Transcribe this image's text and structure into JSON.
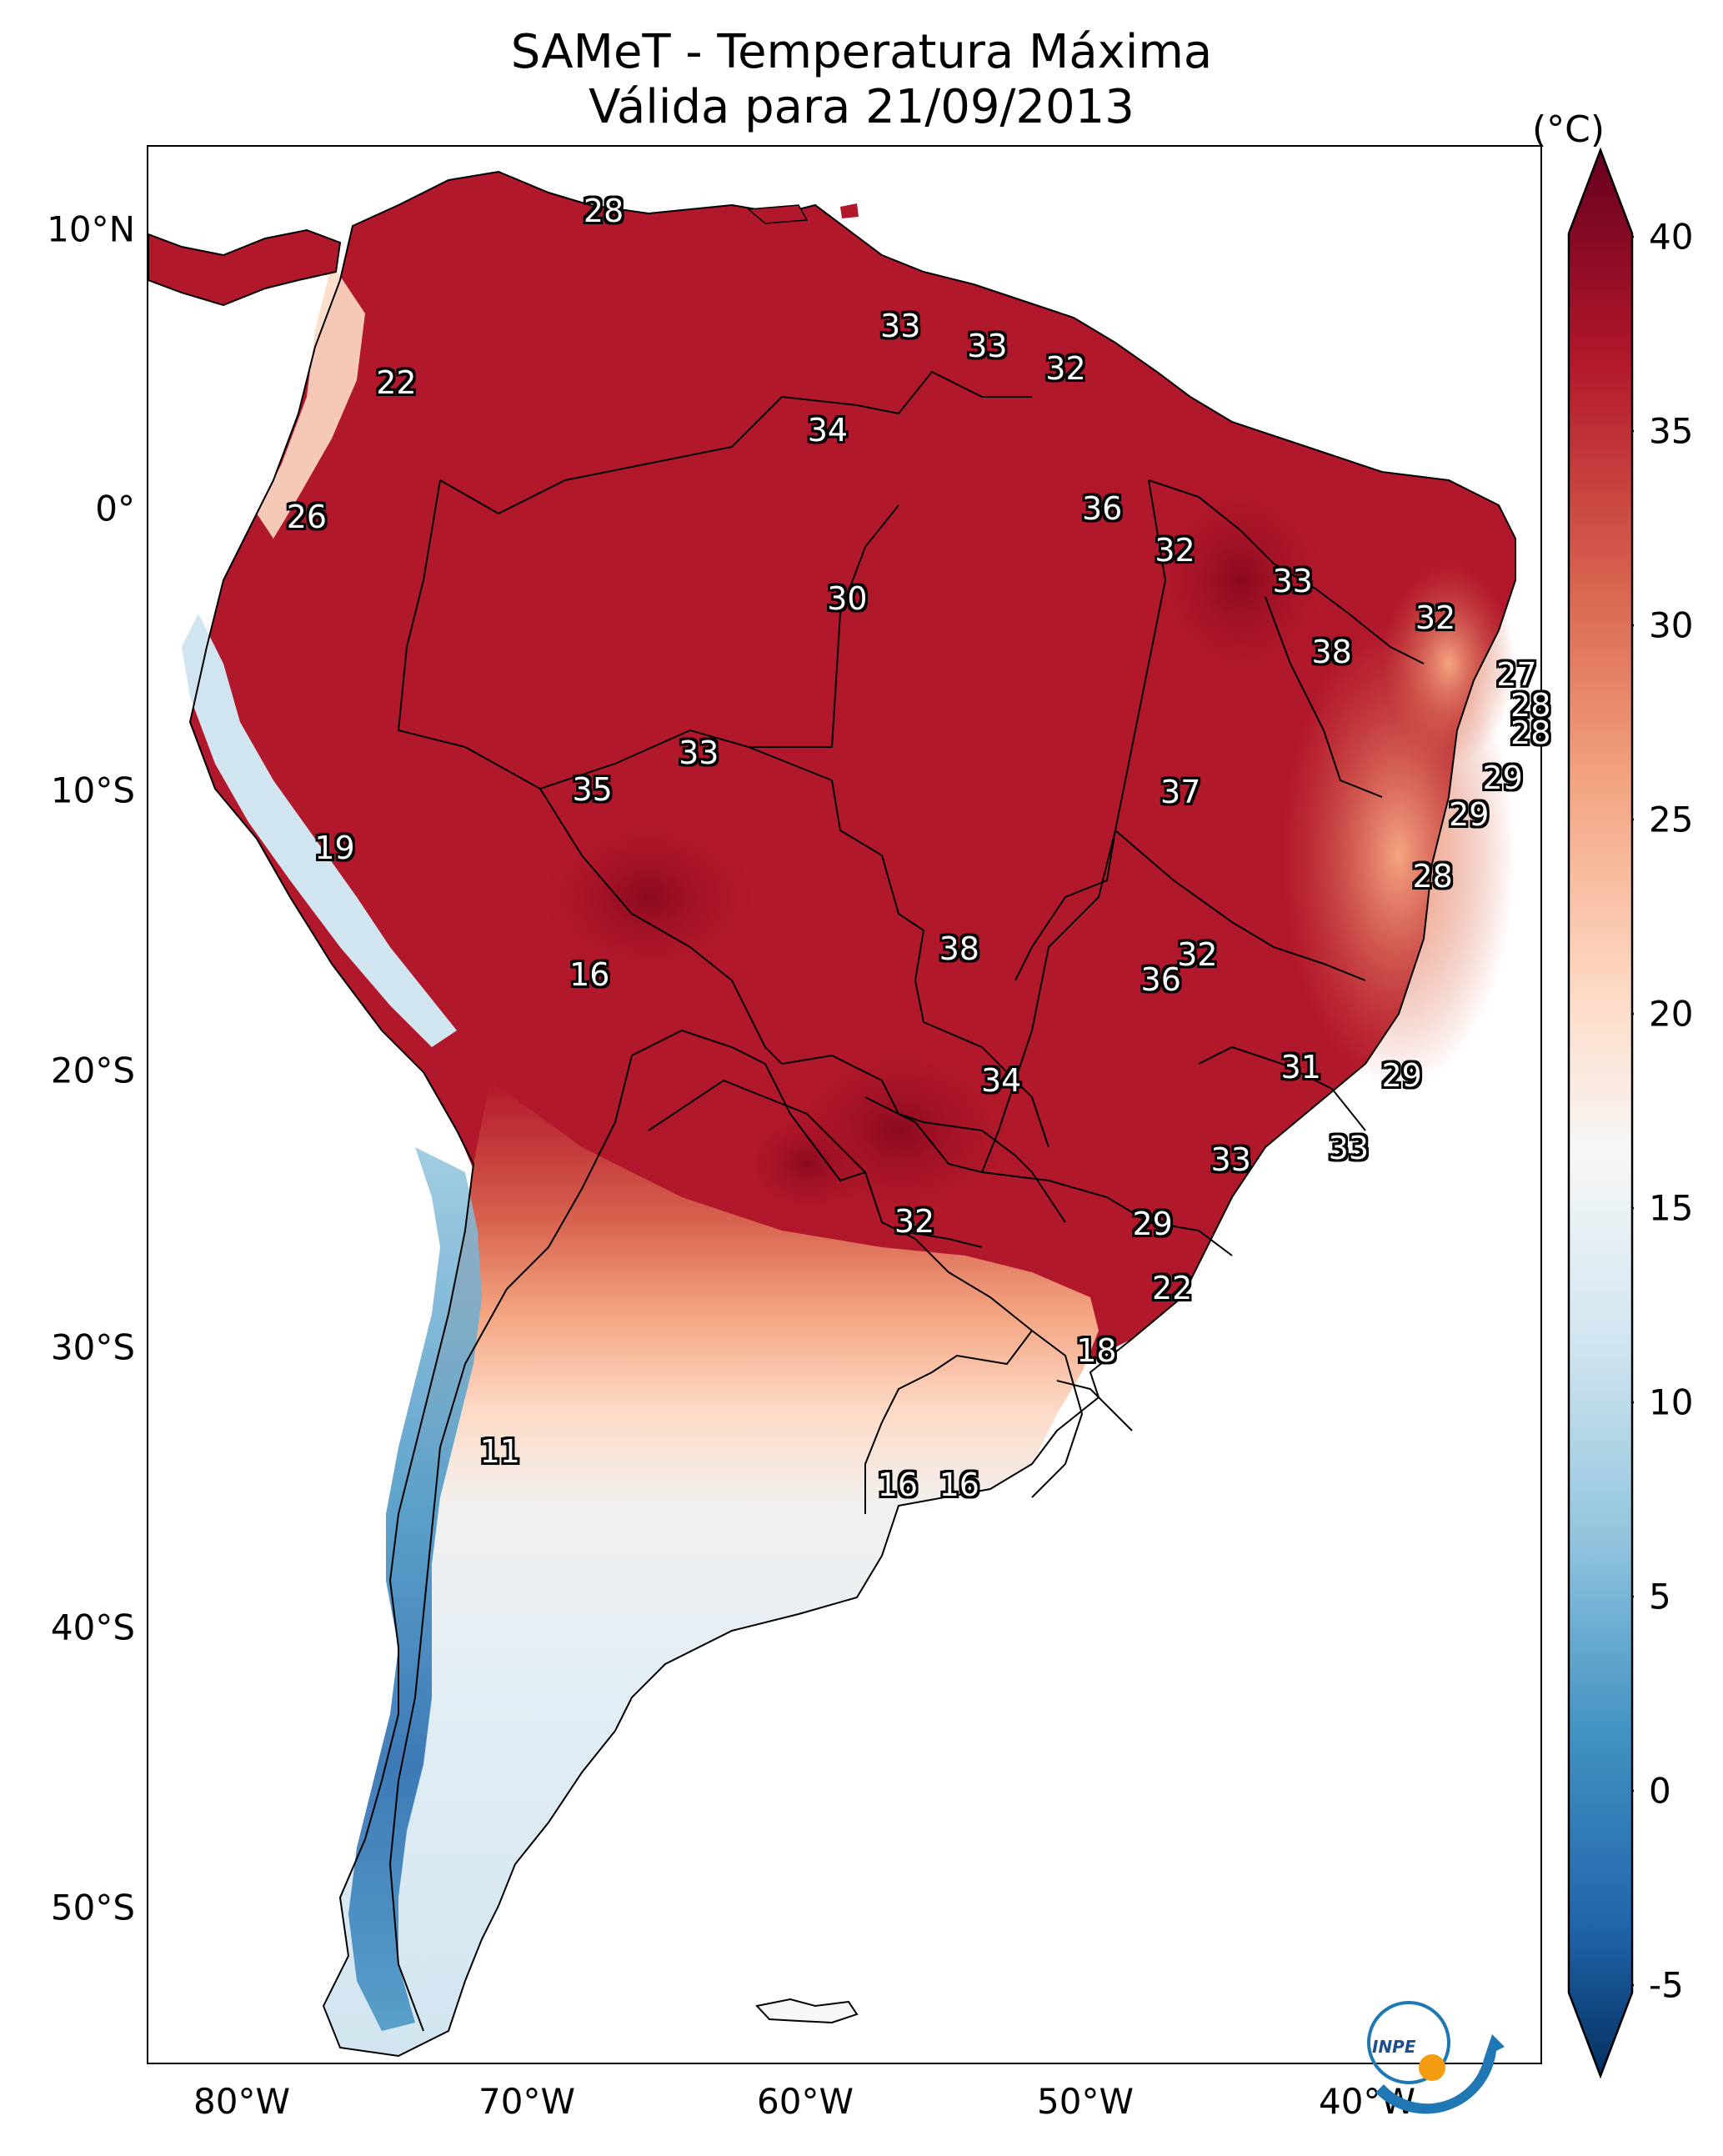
{
  "map": {
    "title_line1": "SAMeT - Temperatura Máxima",
    "title_line2": "Válida para 21/09/2013",
    "colorbar_unit": "(°C)",
    "colorbar_ticks": [
      "40",
      "35",
      "30",
      "25",
      "20",
      "15",
      "10",
      "5",
      "0",
      "-5"
    ],
    "colorbar_range": [
      -5,
      40
    ],
    "colormap": "RdBu_r",
    "lon_labels": [
      "80°W",
      "70°W",
      "60°W",
      "50°W",
      "40°W"
    ],
    "lat_labels": [
      "10°N",
      "0°",
      "10°S",
      "20°S",
      "30°S",
      "40°S",
      "50°S"
    ],
    "logo_text": "INPE",
    "colors": {
      "hot": "#b2182b",
      "warm": "#ef8a62",
      "neutral": "#f7f7f7",
      "cool": "#67a9cf",
      "cold": "#2166ac"
    }
  },
  "labels": [
    {
      "value": "28",
      "lon": -67.2,
      "lat": 10.6
    },
    {
      "value": "33",
      "lon": -56.6,
      "lat": 6.5
    },
    {
      "value": "33",
      "lon": -53.5,
      "lat": 5.8
    },
    {
      "value": "32",
      "lon": -50.7,
      "lat": 5.0
    },
    {
      "value": "22",
      "lon": -74.6,
      "lat": 4.5
    },
    {
      "value": "34",
      "lon": -59.2,
      "lat": 2.8
    },
    {
      "value": "36",
      "lon": -49.4,
      "lat": 0.0
    },
    {
      "value": "26",
      "lon": -77.8,
      "lat": -0.3
    },
    {
      "value": "32",
      "lon": -46.8,
      "lat": -1.5
    },
    {
      "value": "33",
      "lon": -42.6,
      "lat": -2.6
    },
    {
      "value": "30",
      "lon": -58.5,
      "lat": -3.2
    },
    {
      "value": "32",
      "lon": -37.5,
      "lat": -3.9
    },
    {
      "value": "38",
      "lon": -41.2,
      "lat": -5.1
    },
    {
      "value": "27",
      "lon": -34.6,
      "lat": -5.9
    },
    {
      "value": "28",
      "lon": -34.1,
      "lat": -7.0
    },
    {
      "value": "28",
      "lon": -34.1,
      "lat": -8.0
    },
    {
      "value": "33",
      "lon": -63.8,
      "lat": -8.7
    },
    {
      "value": "29",
      "lon": -35.1,
      "lat": -9.6
    },
    {
      "value": "35",
      "lon": -67.6,
      "lat": -10.0
    },
    {
      "value": "37",
      "lon": -46.6,
      "lat": -10.1
    },
    {
      "value": "29",
      "lon": -36.3,
      "lat": -10.9
    },
    {
      "value": "19",
      "lon": -76.8,
      "lat": -12.1
    },
    {
      "value": "28",
      "lon": -37.6,
      "lat": -13.1
    },
    {
      "value": "38",
      "lon": -54.5,
      "lat": -15.7
    },
    {
      "value": "32",
      "lon": -46.0,
      "lat": -15.9
    },
    {
      "value": "36",
      "lon": -47.3,
      "lat": -16.8
    },
    {
      "value": "16",
      "lon": -67.7,
      "lat": -16.6
    },
    {
      "value": "31",
      "lon": -42.3,
      "lat": -19.9
    },
    {
      "value": "29",
      "lon": -38.7,
      "lat": -20.2
    },
    {
      "value": "34",
      "lon": -53.0,
      "lat": -20.4
    },
    {
      "value": "33",
      "lon": -40.6,
      "lat": -22.8
    },
    {
      "value": "33",
      "lon": -44.8,
      "lat": -23.2
    },
    {
      "value": "32",
      "lon": -56.1,
      "lat": -25.4
    },
    {
      "value": "29",
      "lon": -47.6,
      "lat": -25.5
    },
    {
      "value": "22",
      "lon": -46.9,
      "lat": -27.8
    },
    {
      "value": "18",
      "lon": -49.6,
      "lat": -30.0
    },
    {
      "value": "11",
      "lon": -70.9,
      "lat": -33.6
    },
    {
      "value": "16",
      "lon": -56.7,
      "lat": -34.8
    },
    {
      "value": "16",
      "lon": -54.5,
      "lat": -34.8
    }
  ]
}
